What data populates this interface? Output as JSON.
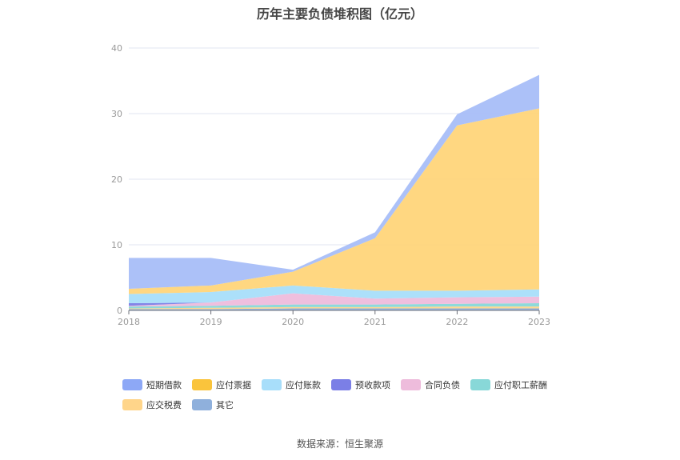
{
  "title": "历年主要负债堆积图（亿元）",
  "source": "数据来源：恒生聚源",
  "chart_data": {
    "type": "area",
    "stacked": true,
    "x": [
      "2018",
      "2019",
      "2020",
      "2021",
      "2022",
      "2023"
    ],
    "ylim": [
      0,
      40
    ],
    "yticks": [
      0,
      10,
      20,
      30,
      40
    ],
    "grid": true,
    "legend_position": "bottom",
    "series": [
      {
        "name": "其它",
        "color": "#8fb0dc",
        "values": [
          0.2,
          0.2,
          0.3,
          0.3,
          0.3,
          0.3
        ]
      },
      {
        "name": "应交税费",
        "color": "#ffd58a",
        "values": [
          0.1,
          0.2,
          0.2,
          0.2,
          0.3,
          0.3
        ]
      },
      {
        "name": "应付职工薪酬",
        "color": "#88d8d8",
        "values": [
          0.3,
          0.3,
          0.4,
          0.4,
          0.4,
          0.5
        ]
      },
      {
        "name": "合同负债",
        "color": "#eebcdc",
        "values": [
          0.1,
          0.5,
          1.7,
          0.9,
          1.0,
          1.0
        ]
      },
      {
        "name": "预收款项",
        "color": "#7b7fe6",
        "values": [
          0.4,
          0.0,
          0.0,
          0.0,
          0.0,
          0.0
        ]
      },
      {
        "name": "应付账款",
        "color": "#a8defa",
        "values": [
          1.4,
          1.6,
          1.2,
          1.2,
          1.0,
          1.1
        ]
      },
      {
        "name": "应付票据",
        "color": "#ffd57a",
        "values": [
          0.8,
          1.0,
          2.1,
          8.0,
          25.2,
          27.6
        ]
      },
      {
        "name": "短期借款",
        "color": "#a8bef8",
        "values": [
          4.7,
          4.2,
          0.3,
          0.9,
          1.7,
          5.1
        ]
      }
    ]
  },
  "legend": {
    "rows": [
      [
        {
          "label": "短期借款",
          "color": "#8da8f6"
        },
        {
          "label": "应付票据",
          "color": "#fac43c"
        },
        {
          "label": "应付账款",
          "color": "#a8defa"
        },
        {
          "label": "预收款项",
          "color": "#7b7fe6"
        },
        {
          "label": "合同负债",
          "color": "#eebcdc"
        },
        {
          "label": "应付职工薪酬",
          "color": "#88d8d8"
        }
      ],
      [
        {
          "label": "应交税费",
          "color": "#ffd58a"
        },
        {
          "label": "其它",
          "color": "#8fb0dc"
        }
      ]
    ]
  }
}
